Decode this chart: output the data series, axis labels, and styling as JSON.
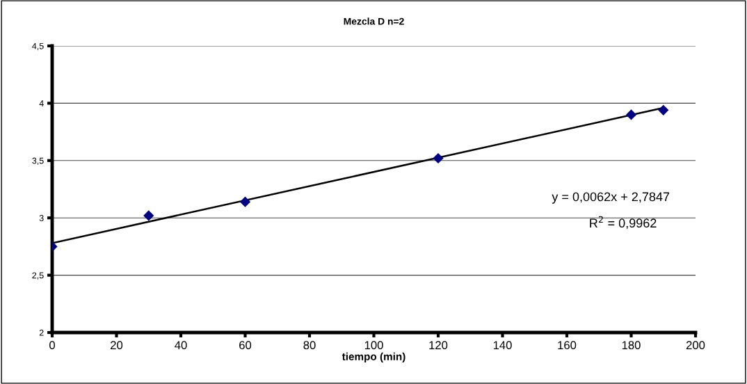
{
  "chart_data": {
    "type": "scatter",
    "title": "Mezcla D n=2",
    "xlabel": "tiempo (min)",
    "x": [
      0,
      30,
      60,
      120,
      180,
      190
    ],
    "series": [
      {
        "color": "#000080",
        "values": [
          2.75,
          3.02,
          3.14,
          3.52,
          3.9,
          3.94
        ],
        "marker": "diamond"
      },
      {
        "type": "line",
        "color": "#000000",
        "x": [
          0,
          190
        ],
        "values": [
          2.78,
          3.96
        ],
        "marker": "none",
        "line_style": "solid"
      }
    ],
    "xlim": [
      0,
      200
    ],
    "xticks": [
      0,
      20,
      40,
      60,
      80,
      100,
      120,
      140,
      160,
      180,
      200
    ],
    "ylim": [
      2,
      4.5
    ],
    "yticks": [
      2,
      {
        "value": 2.5,
        "label": "2,5"
      },
      3,
      {
        "value": 3.5,
        "label": "3,5"
      },
      4,
      {
        "value": 4.5,
        "label": "4,5"
      }
    ],
    "grid": "y",
    "legend": false,
    "annotations": [
      "y = 0,0062x + 2,7847",
      "R$^{2}$ = 0,9962"
    ]
  }
}
